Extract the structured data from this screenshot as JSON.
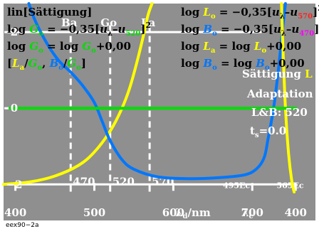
{
  "figure_code": "eex90−2a",
  "title_left": "lin[Sättigung]",
  "formulas_left": {
    "line2": [
      "log ",
      "G",
      "o",
      " = −0,35[",
      "u",
      "λ",
      "–",
      "u",
      "520",
      "]",
      "2"
    ],
    "line3": [
      "log ",
      "G",
      "o",
      " = log ",
      "G",
      "o",
      "+0,00"
    ],
    "line4": [
      "[",
      "L",
      "a",
      "/",
      "G",
      "o",
      ", ",
      "B",
      "o",
      "/",
      "G",
      "o",
      "]"
    ]
  },
  "formulas_right": {
    "line1": [
      "log ",
      "L",
      "o",
      " = −0,35[",
      "u",
      "λ",
      "–",
      "u",
      "570",
      "]",
      "2"
    ],
    "line2": [
      "log ",
      "B",
      "o",
      " = −0,35[",
      "u",
      "λ",
      "–",
      "u",
      "470",
      "]",
      "2"
    ],
    "line3": [
      "log ",
      "L",
      "a",
      " = log ",
      "L",
      "o",
      "+0,00"
    ],
    "line4": [
      "log ",
      "B",
      "o",
      " = log ",
      "B",
      "o",
      "+0,00"
    ]
  },
  "legend_right": {
    "saturation_label": "Sättigung ",
    "saturation_symbol": "L",
    "adaptation": "Adaptation",
    "lb": "L&B: 520",
    "ts_pre": "t",
    "ts_sub": "s",
    "ts_post": "=0.0"
  },
  "colors": {
    "background": "#8f8f8f",
    "yellow": "#ffff00",
    "green": "#00dd00",
    "blue": "#0077ff",
    "white": "#ffffff",
    "magenta": "#ff00ff",
    "red": "#ff2020"
  },
  "chart_data": {
    "type": "line",
    "x_ticks": [
      "400",
      "500",
      "600",
      "700",
      "400"
    ],
    "x_tick_values": [
      400,
      500,
      600,
      700,
      755
    ],
    "x_label": "λd/nm",
    "x_label2": "λc",
    "y_ticks": [
      "2",
      "0",
      "−2"
    ],
    "y_tick_values": [
      2,
      0,
      -2
    ],
    "xlim": [
      385,
      780
    ],
    "ylim": [
      -2.35,
      2.75
    ],
    "vertical_markers": [
      {
        "x": 470,
        "top_label": "Ba",
        "bottom_label": "470"
      },
      {
        "x": 520,
        "top_label": "Go",
        "bottom_label": "520"
      },
      {
        "x": 570,
        "top_label": "La",
        "bottom_label": "570"
      }
    ],
    "bottom_labels_small": [
      {
        "x": 680,
        "label": "495Ec"
      },
      {
        "x": 748,
        "label": "565Ec"
      }
    ],
    "series": [
      {
        "color": "yellow",
        "x": [
          385,
          420,
          450,
          480,
          500,
          520,
          535,
          545,
          555,
          562,
          568,
          573
        ],
        "y": [
          -2.0,
          -1.93,
          -1.78,
          -1.5,
          -1.15,
          -0.6,
          0.0,
          0.55,
          1.3,
          1.9,
          2.45,
          2.75
        ]
      },
      {
        "color": "blue",
        "x": [
          417,
          425,
          440,
          455,
          470,
          485,
          500,
          510,
          520,
          535,
          550,
          580,
          620,
          660,
          690,
          705,
          715,
          720,
          727,
          733,
          738,
          742
        ],
        "y": [
          2.75,
          2.3,
          1.7,
          1.25,
          0.95,
          0.6,
          0.15,
          -0.35,
          -0.85,
          -1.35,
          -1.6,
          -1.8,
          -1.85,
          -1.82,
          -1.75,
          -1.6,
          -1.3,
          -0.8,
          0.0,
          1.0,
          2.0,
          2.75
        ]
      },
      {
        "color": "yellow",
        "x": [
          737,
          739,
          742,
          746,
          750,
          753
        ],
        "y": [
          2.75,
          1.5,
          0.0,
          -1.2,
          -1.9,
          -2.2
        ]
      },
      {
        "color": "green",
        "x": [
          393,
          755
        ],
        "y": [
          0.0,
          0.0
        ]
      }
    ]
  }
}
